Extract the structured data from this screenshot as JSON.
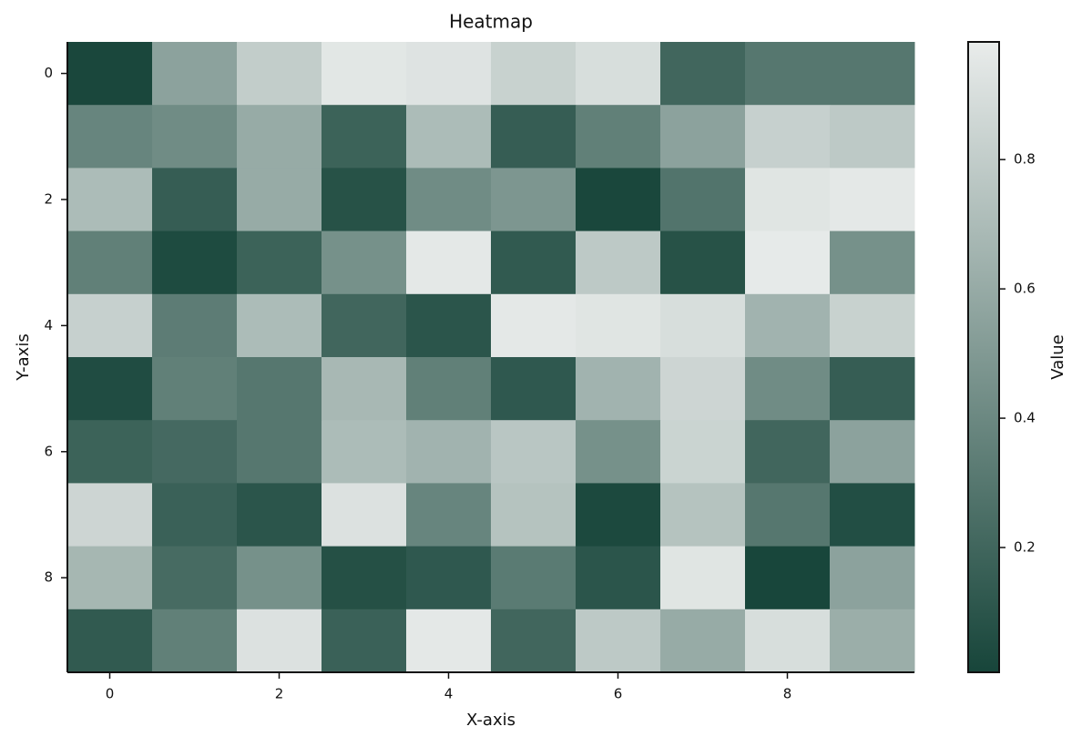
{
  "chart_data": {
    "type": "heatmap",
    "title": "Heatmap",
    "x_label": "X-axis",
    "y_label": "Y-axis",
    "colorbar_label": "Value",
    "colormap": [
      "#17453a",
      "#e9eceb"
    ],
    "clim": [
      0.007,
      0.982
    ],
    "colorbar_ticks": [
      0.2,
      0.4,
      0.6,
      0.8
    ],
    "xlim": [
      -0.5,
      9.5
    ],
    "ylim": [
      9.5,
      -0.5
    ],
    "xticks": [
      0,
      2,
      4,
      6,
      8
    ],
    "yticks": [
      0,
      2,
      4,
      6,
      8
    ],
    "z": [
      [
        0.02,
        0.55,
        0.8,
        0.95,
        0.93,
        0.83,
        0.9,
        0.2,
        0.3,
        0.3
      ],
      [
        0.38,
        0.42,
        0.6,
        0.18,
        0.7,
        0.15,
        0.35,
        0.55,
        0.82,
        0.78
      ],
      [
        0.7,
        0.15,
        0.6,
        0.08,
        0.42,
        0.48,
        0.02,
        0.28,
        0.94,
        0.96
      ],
      [
        0.35,
        0.04,
        0.18,
        0.45,
        0.96,
        0.13,
        0.78,
        0.08,
        0.97,
        0.45
      ],
      [
        0.82,
        0.33,
        0.7,
        0.2,
        0.1,
        0.96,
        0.94,
        0.9,
        0.65,
        0.83
      ],
      [
        0.05,
        0.35,
        0.3,
        0.68,
        0.35,
        0.12,
        0.65,
        0.85,
        0.42,
        0.15
      ],
      [
        0.18,
        0.22,
        0.3,
        0.7,
        0.65,
        0.76,
        0.45,
        0.84,
        0.2,
        0.55
      ],
      [
        0.85,
        0.17,
        0.1,
        0.92,
        0.38,
        0.74,
        0.03,
        0.74,
        0.3,
        0.06
      ],
      [
        0.67,
        0.23,
        0.45,
        0.07,
        0.12,
        0.32,
        0.1,
        0.94,
        0.01,
        0.55
      ],
      [
        0.13,
        0.35,
        0.92,
        0.17,
        0.96,
        0.2,
        0.78,
        0.6,
        0.9,
        0.62
      ]
    ]
  }
}
